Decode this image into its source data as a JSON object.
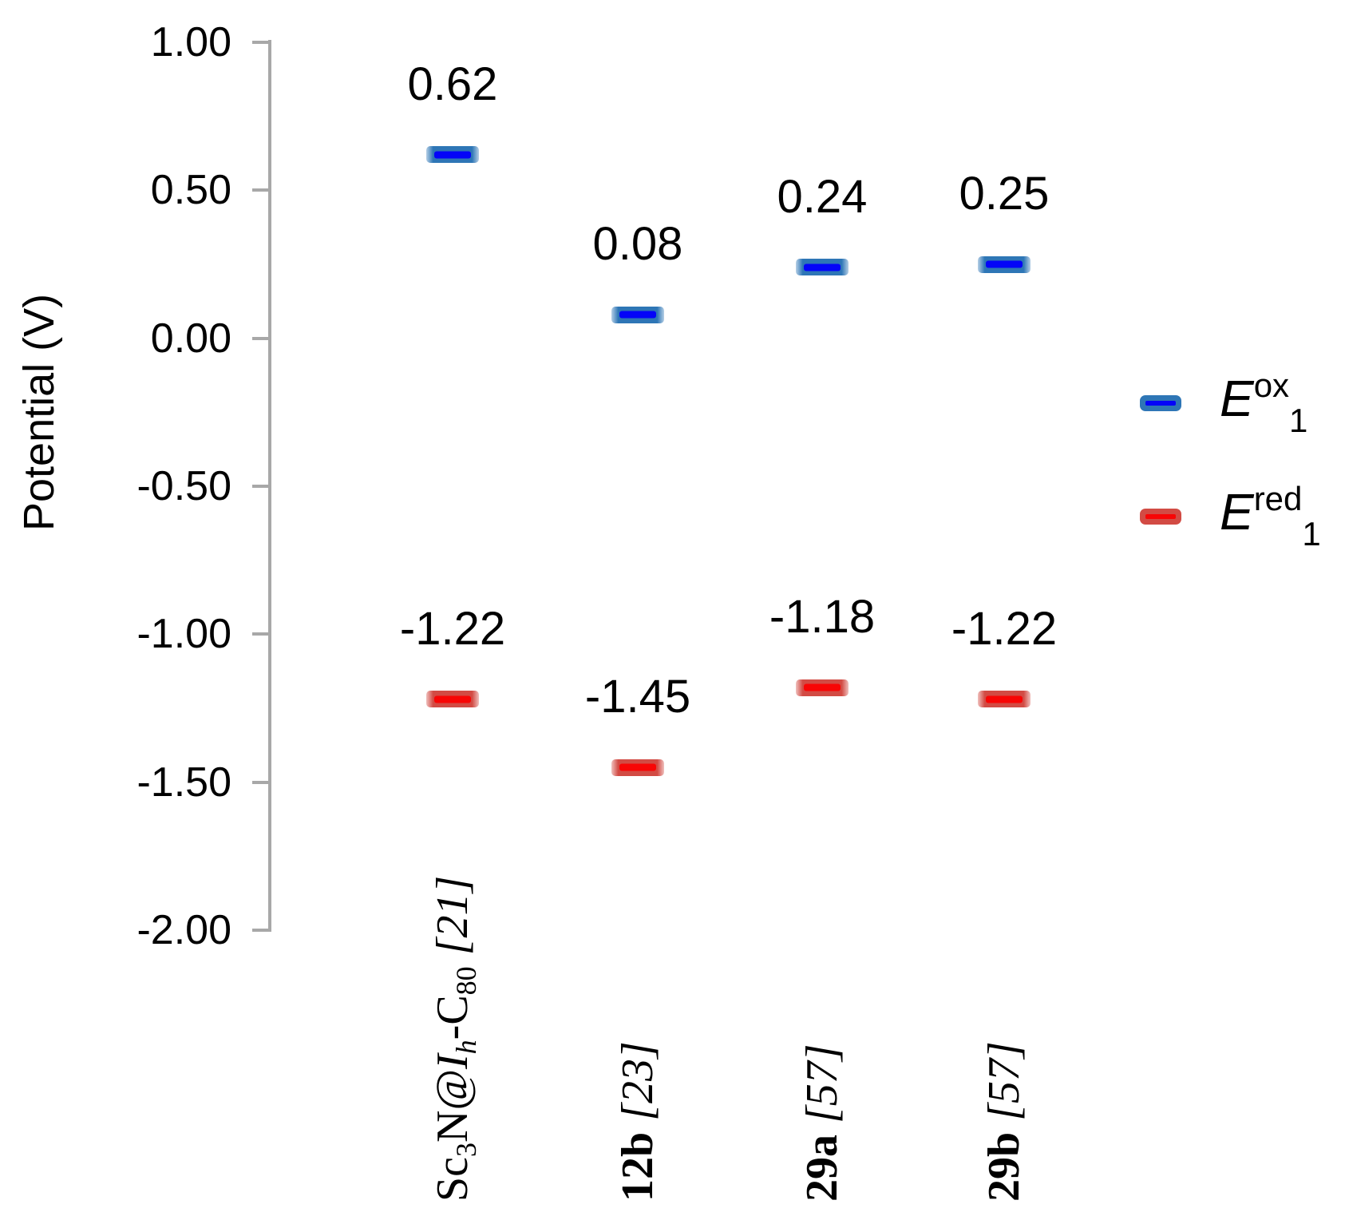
{
  "chart_data": {
    "type": "scatter",
    "title": "",
    "xlabel": "",
    "ylabel": "Potential (V)",
    "ylim": [
      -2.0,
      1.0
    ],
    "y_tick_labels": [
      "1.00",
      "0.50",
      "0.00",
      "-0.50",
      "-1.00",
      "-1.50",
      "-2.00"
    ],
    "grid": false,
    "legend_position": "right",
    "axis_color": "#A8A8A8",
    "categories": [
      {
        "name": "Sc3N@Ih-C80 [21]",
        "parts": [
          {
            "t": "Sc",
            "s": ""
          },
          {
            "t": "3",
            "s": "sub"
          },
          {
            "t": "N@",
            "s": ""
          },
          {
            "t": "I",
            "s": "i"
          },
          {
            "t": "h",
            "s": "isub"
          },
          {
            "t": "-C",
            "s": ""
          },
          {
            "t": "80",
            "s": "sub"
          },
          {
            "t": " ",
            "s": ""
          },
          {
            "t": "[21]",
            "s": "i"
          }
        ]
      },
      {
        "name": "12b [23]",
        "parts": [
          {
            "t": "12b",
            "s": "b"
          },
          {
            "t": " ",
            "s": ""
          },
          {
            "t": "[23]",
            "s": "i"
          }
        ]
      },
      {
        "name": "29a [57]",
        "parts": [
          {
            "t": "29a",
            "s": "b"
          },
          {
            "t": " ",
            "s": ""
          },
          {
            "t": "[57]",
            "s": "i"
          }
        ]
      },
      {
        "name": "29b [57]",
        "parts": [
          {
            "t": "29b",
            "s": "b"
          },
          {
            "t": " ",
            "s": ""
          },
          {
            "t": "[57]",
            "s": "i"
          }
        ]
      }
    ],
    "series": [
      {
        "name": "Eox1",
        "legend_parts": [
          {
            "t": "E",
            "s": "E"
          },
          {
            "t": "ox",
            "s": "sup"
          },
          {
            "t": "1",
            "s": "sub"
          }
        ],
        "outer_color": "#2E76B6",
        "core_color": "#0404F8",
        "values": [
          0.62,
          0.08,
          0.24,
          0.25
        ],
        "labels": [
          "0.62",
          "0.08",
          "0.24",
          "0.25"
        ]
      },
      {
        "name": "Ered1",
        "legend_parts": [
          {
            "t": "E",
            "s": "E"
          },
          {
            "t": "red",
            "s": "sup"
          },
          {
            "t": "1",
            "s": "sub"
          }
        ],
        "outer_color": "#D24B44",
        "core_color": "#F80505",
        "values": [
          -1.22,
          -1.45,
          -1.18,
          -1.22
        ],
        "labels": [
          "-1.22",
          "-1.45",
          "-1.18",
          "-1.22"
        ]
      }
    ]
  }
}
